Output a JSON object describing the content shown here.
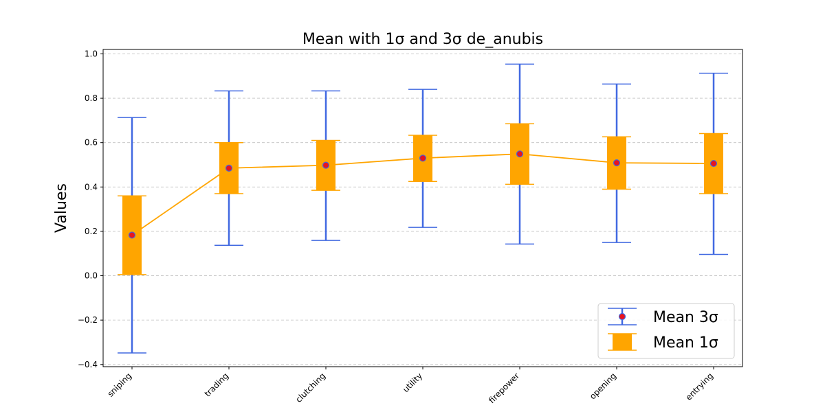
{
  "chart_data": {
    "type": "errorbar",
    "title": "Mean with 1σ and 3σ de_anubis",
    "xlabel": "",
    "ylabel": "Values",
    "categories": [
      "sniping",
      "trading",
      "clutching",
      "utility",
      "firepower",
      "opening",
      "entrying"
    ],
    "mean": [
      0.183,
      0.485,
      0.498,
      0.53,
      0.549,
      0.509,
      0.506
    ],
    "sigma1_low": [
      0.005,
      0.37,
      0.385,
      0.425,
      0.412,
      0.39,
      0.37
    ],
    "sigma1_high": [
      0.36,
      0.6,
      0.61,
      0.633,
      0.685,
      0.626,
      0.641
    ],
    "sigma3_low": [
      -0.348,
      0.137,
      0.159,
      0.218,
      0.143,
      0.15,
      0.096
    ],
    "sigma3_high": [
      0.713,
      0.833,
      0.833,
      0.84,
      0.954,
      0.864,
      0.913
    ],
    "ylim": [
      -0.41,
      1.02
    ],
    "yticks": [
      -0.4,
      -0.2,
      0.0,
      0.2,
      0.4,
      0.6,
      0.8,
      1.0
    ],
    "ytick_labels": [
      "−0.4",
      "−0.2",
      "0.0",
      "0.2",
      "0.4",
      "0.6",
      "0.8",
      "1.0"
    ],
    "grid": "horizontal dashed",
    "legend_position": "lower-right",
    "legend": [
      {
        "label": "Mean 3σ",
        "kind": "sigma3"
      },
      {
        "label": "Mean 1σ",
        "kind": "sigma1"
      }
    ],
    "colors": {
      "sigma3": "#4169e1",
      "sigma1": "#ffa500",
      "mean_marker": "#e8141e",
      "line": "#ffa500",
      "grid": "#c0c0c0"
    }
  }
}
